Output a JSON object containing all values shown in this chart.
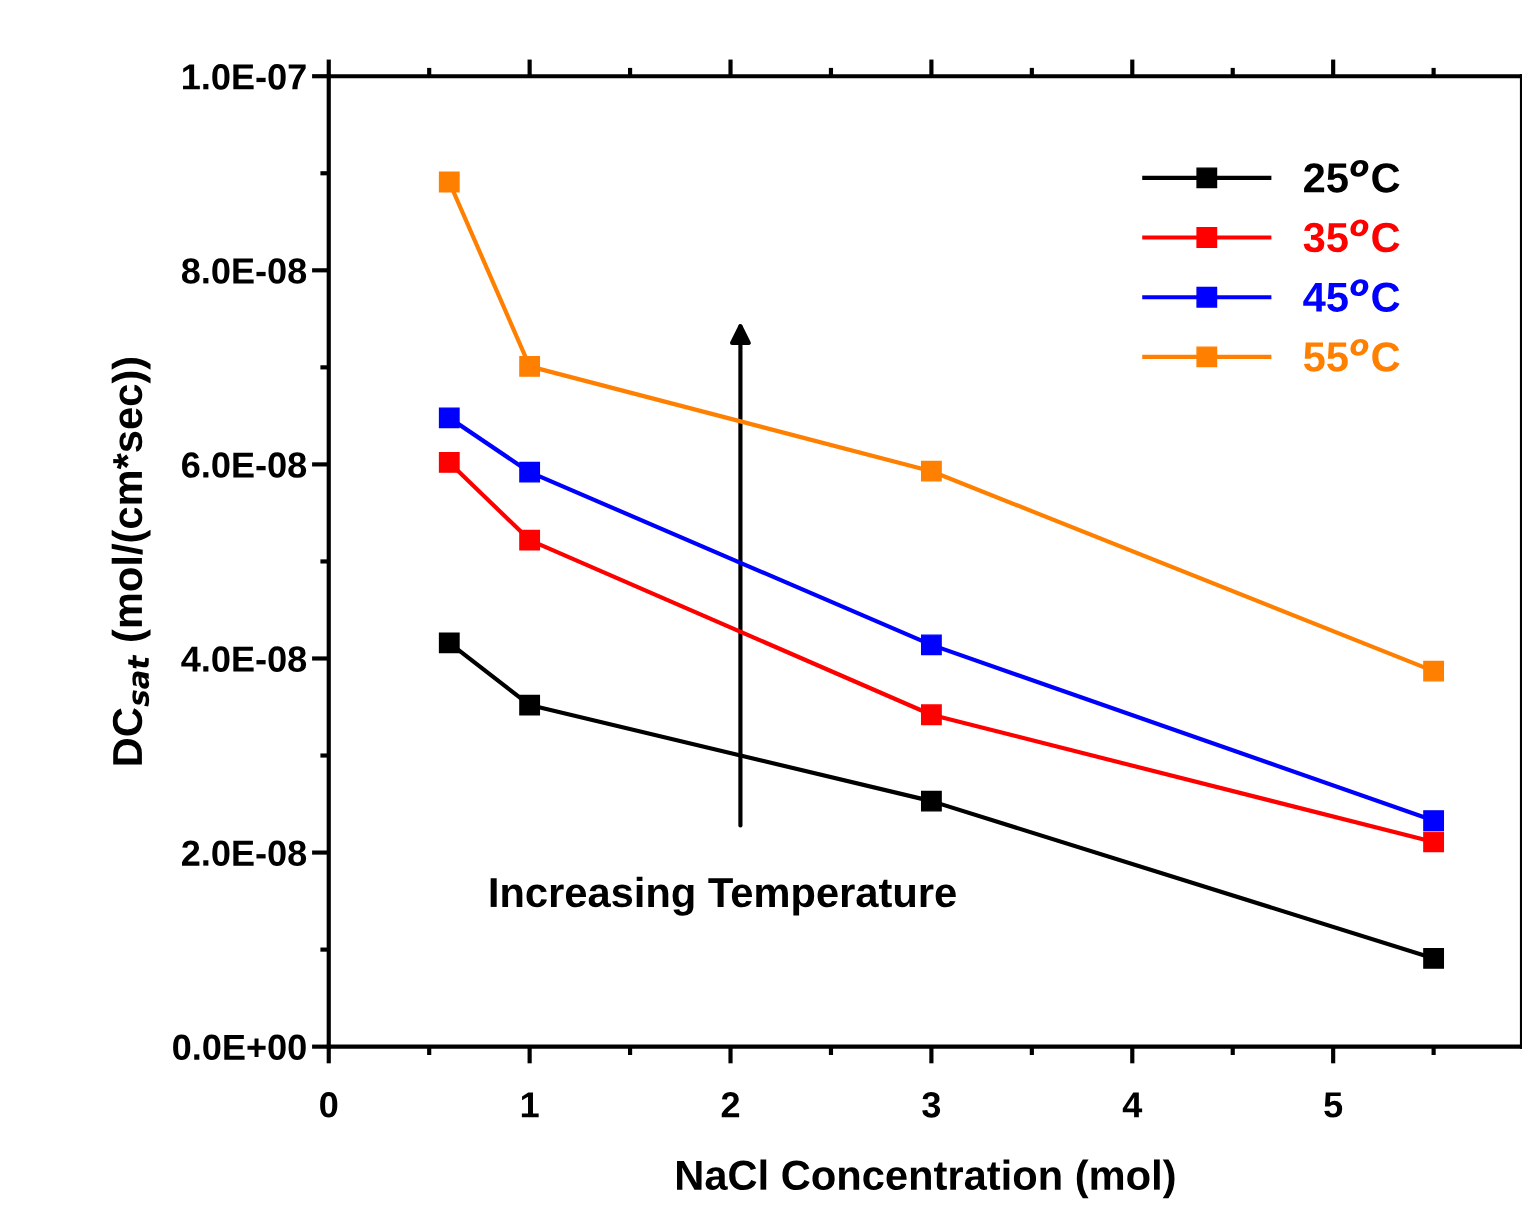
{
  "chart_data": {
    "type": "line",
    "xlabel": "NaCl Concentration (mol)",
    "ylabel": "DC$_{sat}$ (mol/(cm*sec))",
    "x": [
      0.6,
      1,
      3,
      5.5
    ],
    "series": [
      {
        "name": "25$^{o}$C",
        "color": "#000000",
        "values": [
          4.16e-08,
          3.52e-08,
          2.53e-08,
          9.1e-09
        ]
      },
      {
        "name": "35$^{o}$C",
        "color": "#ff0000",
        "values": [
          6.02e-08,
          5.22e-08,
          3.42e-08,
          2.11e-08
        ]
      },
      {
        "name": "45$^{o}$C",
        "color": "#0000ff",
        "values": [
          6.48e-08,
          5.92e-08,
          4.14e-08,
          2.33e-08
        ]
      },
      {
        "name": "55$^{o}$C",
        "color": "#ff8000",
        "values": [
          8.91e-08,
          7.01e-08,
          5.93e-08,
          3.87e-08
        ]
      }
    ],
    "xlim": [
      0,
      5.94
    ],
    "xticks": [
      0,
      1,
      2,
      3,
      4,
      5
    ],
    "ylim": [
      0,
      1e-07
    ],
    "yticks": [
      {
        "value": 0,
        "label": "0.0E+00"
      },
      {
        "value": 2e-08,
        "label": "2.0E-08"
      },
      {
        "value": 4e-08,
        "label": "4.0E-08"
      },
      {
        "value": 6e-08,
        "label": "6.0E-08"
      },
      {
        "value": 8e-08,
        "label": "8.0E-08"
      },
      {
        "value": 1e-07,
        "label": "1.0E-07"
      }
    ],
    "annotations": [
      "Increasing Temperature"
    ],
    "legend": "top right",
    "marker": "square",
    "line_style": "solid",
    "grid": false
  }
}
